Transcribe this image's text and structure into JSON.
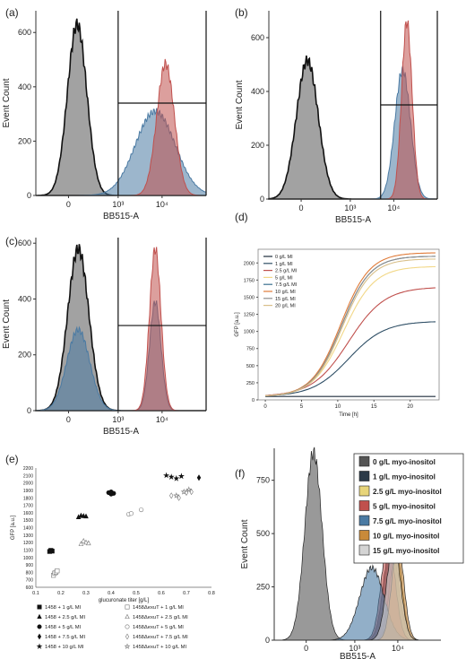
{
  "colors": {
    "gray": "#555555",
    "blue": "#4a7aa3",
    "red": "#c0504d",
    "dark": "#2b3a48",
    "yellow": "#e8d57a",
    "orange": "#c98a3a",
    "light": "#d4d4d4"
  },
  "chart_data": [
    {
      "panel": "(a)",
      "type": "area",
      "xlabel": "BB515-A",
      "ylabel": "Event Count",
      "x_scale": "biexponential",
      "x_ticks": [
        "0",
        "10³",
        "10⁴"
      ],
      "y_ticks": [
        "0",
        "200",
        "400",
        "600"
      ],
      "ylim": [
        0,
        680
      ],
      "gate_from": 1000,
      "gate_level": 340,
      "series": [
        {
          "color": "gray",
          "peak_x": 70,
          "peak_y": 630
        },
        {
          "color": "blue",
          "peak_x": 7000,
          "peak_y": 310
        },
        {
          "color": "red",
          "peak_x": 12000,
          "peak_y": 485
        }
      ]
    },
    {
      "panel": "(b)",
      "type": "area",
      "xlabel": "BB515-A",
      "ylabel": "Event Count",
      "x_scale": "biexponential",
      "x_ticks": [
        "0",
        "10³",
        "10⁴"
      ],
      "y_ticks": [
        "0",
        "200",
        "400",
        "600"
      ],
      "ylim": [
        0,
        700
      ],
      "gate_from": 5000,
      "gate_level": 350,
      "series": [
        {
          "color": "gray",
          "peak_x": 50,
          "peak_y": 515
        },
        {
          "color": "blue",
          "peak_x": 16000,
          "peak_y": 480
        },
        {
          "color": "red",
          "peak_x": 20000,
          "peak_y": 660
        }
      ]
    },
    {
      "panel": "(c)",
      "type": "area",
      "xlabel": "BB515-A",
      "ylabel": "Event Count",
      "x_scale": "biexponential",
      "x_ticks": [
        "0",
        "10³",
        "10⁴"
      ],
      "y_ticks": [
        "0",
        "200",
        "400",
        "600"
      ],
      "ylim": [
        0,
        620
      ],
      "gate_from": 1000,
      "gate_level": 305,
      "series": [
        {
          "color": "gray",
          "peak_x": 80,
          "peak_y": 580
        },
        {
          "color": "blue",
          "peak_x": 80,
          "peak_y": 290
        },
        {
          "color": "blue",
          "peak_x": 7000,
          "peak_y": 390
        },
        {
          "color": "red",
          "peak_x": 7000,
          "peak_y": 580
        }
      ]
    },
    {
      "panel": "(d)",
      "type": "line",
      "xlabel": "Time [h]",
      "ylabel": "GFP [a.u.]",
      "xlim": [
        -1,
        24
      ],
      "ylim": [
        0,
        2200
      ],
      "x_ticks": [
        0,
        5,
        10,
        15,
        20
      ],
      "y_ticks": [
        0,
        250,
        500,
        750,
        1000,
        1250,
        1500,
        1750,
        2000
      ],
      "series": [
        {
          "name": "0 g/L MI",
          "color": "#1f2d3d",
          "final": 80,
          "midpoint": 100,
          "growth": 0.3
        },
        {
          "name": "1 g/L MI",
          "color": "#2f4f66",
          "final": 1150,
          "midpoint": 11.5,
          "growth": 0.4
        },
        {
          "name": "2.5 g/L MI",
          "color": "#c0504d",
          "final": 1650,
          "midpoint": 11.5,
          "growth": 0.4
        },
        {
          "name": "5 g/L MI",
          "color": "#f2d888",
          "final": 1950,
          "midpoint": 10.8,
          "growth": 0.47
        },
        {
          "name": "7.5 g/L MI",
          "color": "#3a6f8f",
          "final": 2100,
          "midpoint": 10.5,
          "growth": 0.5
        },
        {
          "name": "10 g/L MI",
          "color": "#e07b39",
          "final": 2150,
          "midpoint": 10.4,
          "growth": 0.5
        },
        {
          "name": "15 g/L MI",
          "color": "#8e8e8e",
          "final": 2100,
          "midpoint": 10.5,
          "growth": 0.5
        },
        {
          "name": "20 g/L MI",
          "color": "#d9c08a",
          "final": 2060,
          "midpoint": 10.6,
          "growth": 0.5
        }
      ]
    },
    {
      "panel": "(e)",
      "type": "scatter",
      "xlabel": "glucuronate titer [g/L]",
      "ylabel": "GFP [a.u.]",
      "xlim": [
        0.1,
        0.8
      ],
      "ylim": [
        600,
        2200
      ],
      "x_ticks": [
        0.1,
        0.2,
        0.3,
        0.4,
        0.5,
        0.6,
        0.7,
        0.8
      ],
      "y_ticks": [
        600,
        700,
        800,
        900,
        1000,
        1100,
        1200,
        1300,
        1400,
        1500,
        1600,
        1700,
        1800,
        1900,
        2000,
        2100,
        2200
      ],
      "series": [
        {
          "name": "1458 + 1 g/L MI",
          "marker": "square",
          "filled": true,
          "points": [
            [
              0.16,
              1090
            ],
            [
              0.165,
              1085
            ],
            [
              0.155,
              1080
            ],
            [
              0.16,
              1095
            ]
          ]
        },
        {
          "name": "1458 + 2.5 g/L MI",
          "marker": "triangle",
          "filled": true,
          "points": [
            [
              0.27,
              1540
            ],
            [
              0.28,
              1560
            ],
            [
              0.29,
              1555
            ],
            [
              0.3,
              1550
            ]
          ]
        },
        {
          "name": "1458 + 5 g/L MI",
          "marker": "circle",
          "filled": true,
          "points": [
            [
              0.39,
              1870
            ],
            [
              0.4,
              1880
            ],
            [
              0.41,
              1860
            ],
            [
              0.4,
              1850
            ]
          ]
        },
        {
          "name": "1458 + 7.5 g/L MI",
          "marker": "diamond",
          "filled": true,
          "points": [
            [
              0.75,
              2070
            ]
          ]
        },
        {
          "name": "1458 + 10 g/L MI",
          "marker": "star",
          "filled": true,
          "points": [
            [
              0.62,
              2100
            ],
            [
              0.64,
              2080
            ],
            [
              0.66,
              2060
            ],
            [
              0.68,
              2090
            ]
          ]
        },
        {
          "name": "1458ΔexuT + 1 g/L MI",
          "marker": "square",
          "filled": false,
          "points": [
            [
              0.17,
              760
            ],
            [
              0.175,
              790
            ],
            [
              0.18,
              800
            ],
            [
              0.185,
              820
            ]
          ]
        },
        {
          "name": "1458ΔexuT + 2.5 g/L MI",
          "marker": "triangle",
          "filled": false,
          "points": [
            [
              0.28,
              1180
            ],
            [
              0.29,
              1220
            ],
            [
              0.3,
              1200
            ],
            [
              0.31,
              1190
            ]
          ]
        },
        {
          "name": "1458ΔexuT + 5 g/L MI",
          "marker": "circle",
          "filled": false,
          "points": [
            [
              0.47,
              1580
            ],
            [
              0.48,
              1590
            ],
            [
              0.52,
              1640
            ]
          ]
        },
        {
          "name": "1458ΔexuT + 7.5 g/L MI",
          "marker": "diamond",
          "filled": false,
          "points": [
            [
              0.64,
              1830
            ],
            [
              0.67,
              1800
            ],
            [
              0.7,
              1870
            ],
            [
              0.72,
              1880
            ]
          ]
        },
        {
          "name": "1458ΔexuT + 10 g/L MI",
          "marker": "star",
          "filled": false,
          "points": [
            [
              0.66,
              1830
            ],
            [
              0.69,
              1880
            ],
            [
              0.71,
              1910
            ]
          ]
        }
      ]
    },
    {
      "panel": "(f)",
      "type": "area",
      "xlabel": "BB515-A",
      "ylabel": "Event Count",
      "x_scale": "biexponential",
      "x_ticks": [
        "0",
        "10³",
        "10⁴"
      ],
      "y_ticks": [
        "0",
        "250",
        "500",
        "750"
      ],
      "ylim": [
        0,
        900
      ],
      "legend": "top-right",
      "series": [
        {
          "name": "0 g/L myo-inositol",
          "color": "gray",
          "peak_x": 60,
          "peak_y": 880
        },
        {
          "name": "1 g/L myo-inositol",
          "color": "dark",
          "peak_x": 7000,
          "peak_y": 460
        },
        {
          "name": "2.5 g/L myo-inositol",
          "color": "yellow",
          "peak_x": 9000,
          "peak_y": 440
        },
        {
          "name": "5 g/L myo-inositol",
          "color": "red",
          "peak_x": 6000,
          "peak_y": 470
        },
        {
          "name": "7.5 g/L myo-inositol",
          "color": "blue",
          "peak_x": 2500,
          "peak_y": 340
        },
        {
          "name": "10 g/L myo-inositol",
          "color": "orange",
          "peak_x": 10000,
          "peak_y": 460
        },
        {
          "name": "15 g/L myo-inositol",
          "color": "light",
          "peak_x": 8000,
          "peak_y": 450
        }
      ]
    }
  ]
}
